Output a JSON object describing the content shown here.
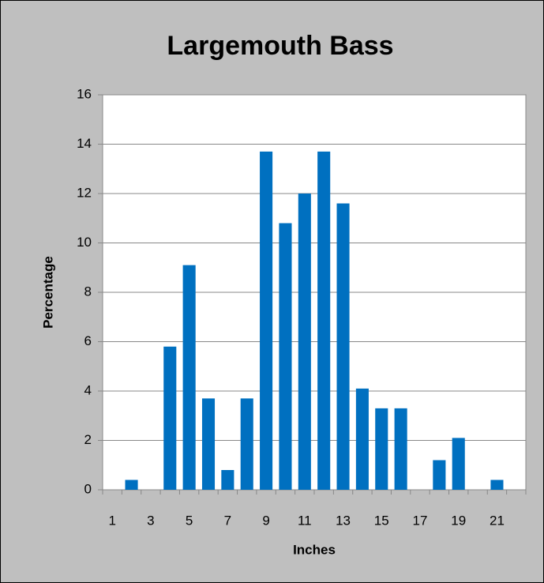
{
  "chart_data": {
    "type": "bar",
    "title": "Largemouth Bass",
    "x_label": "Inches",
    "y_label": "Percentage",
    "categories": [
      "1",
      null,
      "3",
      null,
      "5",
      null,
      "7",
      null,
      "9",
      null,
      "11",
      null,
      "13",
      null,
      "15",
      null,
      "17",
      null,
      "19",
      null,
      "21",
      null
    ],
    "values": [
      0,
      0.4,
      0,
      5.8,
      9.1,
      3.7,
      0.8,
      3.7,
      13.7,
      10.8,
      12.0,
      13.7,
      11.6,
      4.1,
      3.3,
      3.3,
      0,
      1.2,
      2.1,
      0,
      0.4,
      0
    ],
    "color": "#0070c0",
    "ylim": [
      0,
      16
    ],
    "yticks": [
      0,
      2,
      4,
      6,
      8,
      10,
      12,
      14,
      16
    ],
    "grid": true
  }
}
